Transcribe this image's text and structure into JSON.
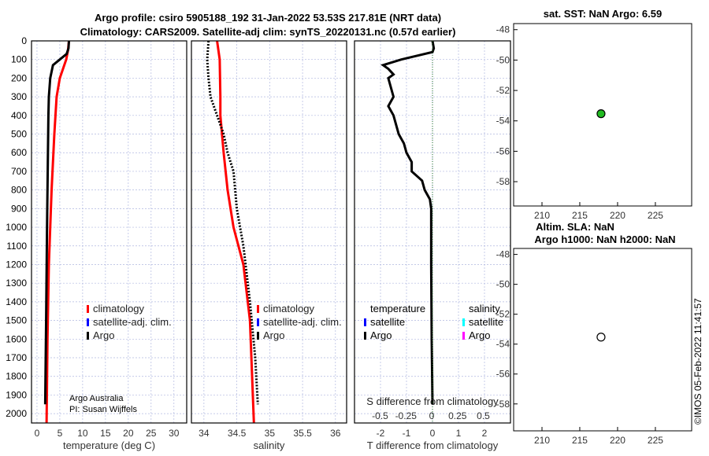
{
  "title_line1": "Argo profile: csiro 5905188_192 31-Jan-2022 53.53S 217.81E (NRT data)",
  "title_line2": "Climatology: CARS2009. Satellite-adj clim: synTS_20220131.nc (0.57d earlier)",
  "credit_line1": "Argo Australia",
  "credit_line2": "PI: Susan Wijffels",
  "timestamp": "©IMOS 05-Feb-2022 11:41:57",
  "colors": {
    "climatology": "#ff0000",
    "satellite": "#0000ff",
    "argo": "#000000",
    "sal_satellite": "#00ffff",
    "sal_argo": "#ff00ff",
    "grid": "#b0b8e0"
  },
  "chart_data": [
    {
      "type": "line",
      "name": "temperature",
      "xlabel": "temperature (deg C)",
      "xlim": [
        -1.2,
        32.8
      ],
      "ylim": [
        0,
        2050
      ],
      "xticks": [
        0,
        5,
        10,
        15,
        20,
        25,
        30
      ],
      "yticks": [
        0,
        100,
        200,
        300,
        400,
        500,
        600,
        700,
        800,
        900,
        1000,
        1100,
        1200,
        1300,
        1400,
        1500,
        1600,
        1700,
        1800,
        1900,
        2000
      ],
      "legend": [
        "climatology",
        "satellite-adj. clim.",
        "Argo"
      ],
      "series": [
        {
          "name": "climatology",
          "depth": [
            0,
            50,
            100,
            200,
            300,
            500,
            800,
            1200,
            1600,
            2050
          ],
          "values": [
            7,
            6.8,
            6.4,
            5,
            4.3,
            3.8,
            3.2,
            2.6,
            2.3,
            2.1
          ]
        },
        {
          "name": "Argo",
          "depth": [
            0,
            40,
            70,
            100,
            130,
            200,
            300,
            400,
            600,
            800,
            1000,
            1500,
            1950
          ],
          "values": [
            7,
            6.9,
            6.5,
            5,
            3.5,
            2.9,
            2.6,
            2.5,
            2.4,
            2.3,
            2.2,
            2.0,
            1.8
          ]
        }
      ]
    },
    {
      "type": "line",
      "name": "salinity",
      "xlabel": "salinity",
      "xlim": [
        33.81,
        36.17
      ],
      "ylim": [
        0,
        2050
      ],
      "xticks": [
        34,
        34.5,
        35,
        35.5,
        36
      ],
      "legend": [
        "climatology",
        "satellite-adj. clim.",
        "Argo"
      ],
      "series": [
        {
          "name": "climatology",
          "depth": [
            0,
            100,
            300,
            400,
            600,
            800,
            1000,
            1200,
            1500,
            2050
          ],
          "values": [
            34.2,
            34.24,
            34.25,
            34.25,
            34.3,
            34.36,
            34.45,
            34.6,
            34.7,
            34.76
          ]
        },
        {
          "name": "Argo",
          "depth": [
            0,
            100,
            200,
            300,
            400,
            500,
            600,
            700,
            900,
            1100,
            1400,
            1700,
            1950
          ],
          "values": [
            34.07,
            34.05,
            34.07,
            34.1,
            34.2,
            34.3,
            34.36,
            34.45,
            34.5,
            34.6,
            34.7,
            34.78,
            34.82
          ]
        }
      ]
    },
    {
      "type": "line",
      "name": "difference",
      "xlabel": "T difference from climatology",
      "xlabel2": "S difference from climatology",
      "xlim": [
        -3,
        3
      ],
      "xticks": [
        -2,
        -1,
        0,
        1,
        2
      ],
      "xticks2": [
        -0.5,
        -0.25,
        0,
        0.25,
        0.5
      ],
      "ylim": [
        0,
        2050
      ],
      "legend_temperature_title": "temperature",
      "legend_salinity_title": "salinity",
      "legend_temperature": [
        "satellite",
        "Argo"
      ],
      "legend_salinity": [
        "satellite",
        "Argo"
      ],
      "series": [
        {
          "name": "T Argo",
          "depth": [
            0,
            40,
            60,
            80,
            100,
            130,
            150,
            180,
            200,
            250,
            300,
            350,
            400,
            450,
            500,
            550,
            600,
            650,
            700,
            750,
            800,
            850,
            900,
            1200,
            1600,
            1950
          ],
          "values": [
            0,
            0.05,
            0,
            -0.6,
            -1.2,
            -1.9,
            -1.7,
            -1.5,
            -1.7,
            -1.6,
            -1.5,
            -1.7,
            -1.5,
            -1.4,
            -1.3,
            -1.1,
            -1.0,
            -0.8,
            -0.8,
            -0.4,
            -0.3,
            -0.1,
            -0.05,
            -0.05,
            -0.03,
            0
          ]
        }
      ]
    },
    {
      "type": "scatter",
      "name": "sst-map",
      "title": "sat. SST: NaN Argo: 6.59",
      "xlim": [
        206.25,
        229.8
      ],
      "ylim": [
        -59.6,
        -47.6
      ],
      "xticks": [
        210,
        215,
        220,
        225
      ],
      "yticks": [
        -48,
        -50,
        -52,
        -54,
        -56,
        -58
      ],
      "points": [
        {
          "lon": 217.81,
          "lat": -53.53,
          "color": "#22bb22"
        }
      ]
    },
    {
      "type": "scatter",
      "name": "sla-map",
      "title": "Altim. SLA: NaN",
      "title2": "Argo h1000: NaN h2000: NaN",
      "xlim": [
        206.25,
        229.8
      ],
      "ylim": [
        -59.8,
        -47.6
      ],
      "xticks": [
        210,
        215,
        220,
        225
      ],
      "yticks": [
        -48,
        -50,
        -52,
        -54,
        -56,
        -58
      ],
      "points": [
        {
          "lon": 217.81,
          "lat": -53.53,
          "color": "#ffffff"
        }
      ]
    }
  ]
}
